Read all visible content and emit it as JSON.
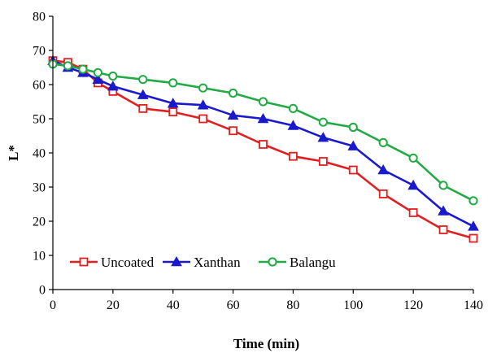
{
  "chart_data": {
    "type": "line",
    "title": "",
    "xlabel": "Time (min)",
    "ylabel": "L*",
    "xlim": [
      0,
      140
    ],
    "ylim": [
      0,
      80
    ],
    "xticks": [
      0,
      20,
      40,
      60,
      80,
      100,
      120,
      140
    ],
    "yticks": [
      0,
      10,
      20,
      30,
      40,
      50,
      60,
      70,
      80
    ],
    "grid": false,
    "legend_position": "lower-left",
    "series": [
      {
        "name": "Uncoated",
        "color": "#e02020",
        "marker": "open-square",
        "x": [
          0,
          5,
          10,
          15,
          20,
          30,
          40,
          50,
          60,
          70,
          80,
          90,
          100,
          110,
          120,
          130,
          140
        ],
        "y": [
          67,
          66.5,
          64.5,
          60.5,
          58,
          53,
          52,
          50,
          46.5,
          42.5,
          39,
          37.5,
          35,
          28,
          22.5,
          17.5,
          15
        ]
      },
      {
        "name": "Xanthan",
        "color": "#1a1acc",
        "marker": "filled-triangle",
        "x": [
          0,
          5,
          10,
          15,
          20,
          30,
          40,
          50,
          60,
          70,
          80,
          90,
          100,
          110,
          120,
          130,
          140
        ],
        "y": [
          67,
          65,
          63.5,
          61.5,
          59.5,
          57,
          54.5,
          54,
          51,
          50,
          48,
          44.5,
          42,
          35,
          30.5,
          23,
          18.5
        ]
      },
      {
        "name": "Balangu",
        "color": "#22aa44",
        "marker": "open-circle",
        "x": [
          0,
          5,
          10,
          15,
          20,
          30,
          40,
          50,
          60,
          70,
          80,
          90,
          100,
          110,
          120,
          130,
          140
        ],
        "y": [
          66,
          65.5,
          64.5,
          63.5,
          62.5,
          61.5,
          60.5,
          59,
          57.5,
          55,
          53,
          49,
          47.5,
          43,
          38.5,
          30.5,
          26
        ]
      }
    ]
  }
}
